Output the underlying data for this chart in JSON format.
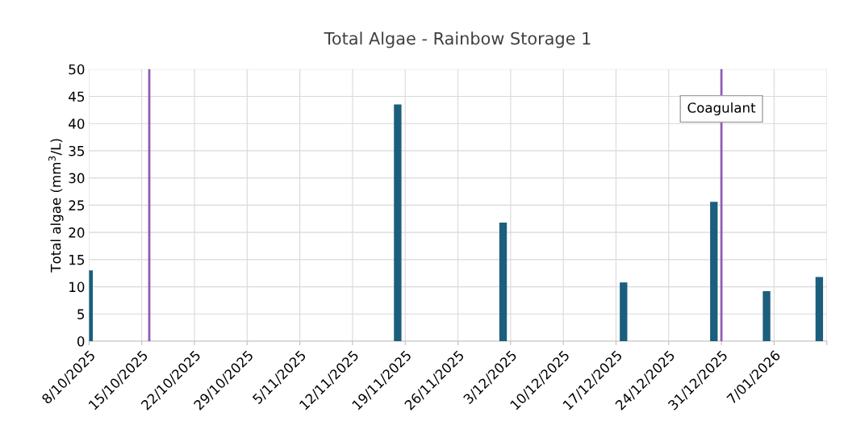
{
  "chart_data": {
    "type": "bar",
    "title": "Total Algae - Rainbow Storage 1",
    "ylabel": "Total algae (mm$^{3}$/L)",
    "x": [
      "2025-10-08",
      "2025-11-18",
      "2025-12-02",
      "2025-12-18",
      "2025-12-30",
      "2026-01-06",
      "2026-01-13"
    ],
    "values": [
      13,
      43.5,
      21.8,
      10.8,
      25.6,
      9.2,
      11.8
    ],
    "color": "#1b5e7e",
    "xlim": [
      "2025-10-08",
      "2026-01-14"
    ],
    "xticks": [
      {
        "value": "2025-10-08",
        "label": "8/10/2025"
      },
      {
        "value": "2025-10-15",
        "label": "15/10/2025"
      },
      {
        "value": "2025-10-22",
        "label": "22/10/2025"
      },
      {
        "value": "2025-10-29",
        "label": "29/10/2025"
      },
      {
        "value": "2025-11-05",
        "label": "5/11/2025"
      },
      {
        "value": "2025-11-12",
        "label": "12/11/2025"
      },
      {
        "value": "2025-11-19",
        "label": "19/11/2025"
      },
      {
        "value": "2025-11-26",
        "label": "26/11/2025"
      },
      {
        "value": "2025-12-03",
        "label": "3/12/2025"
      },
      {
        "value": "2025-12-10",
        "label": "10/12/2025"
      },
      {
        "value": "2025-12-17",
        "label": "17/12/2025"
      },
      {
        "value": "2025-12-24",
        "label": "24/12/2025"
      },
      {
        "value": "2025-12-31",
        "label": "31/12/2025"
      },
      {
        "value": "2026-01-07",
        "label": "7/01/2026"
      },
      {
        "value": "2026-01-14",
        "label": null
      }
    ],
    "ylim": [
      0,
      50
    ],
    "yticks": [
      0,
      5,
      10,
      15,
      20,
      25,
      30,
      35,
      40,
      45,
      50
    ],
    "grid": true,
    "ref_lines": [
      {
        "axis": "x",
        "value": "2025-10-16",
        "label": null,
        "color": "#8e5cb5"
      },
      {
        "axis": "x",
        "value": "2025-12-31",
        "label": "Coagulant",
        "color": "#8e5cb5"
      }
    ]
  }
}
